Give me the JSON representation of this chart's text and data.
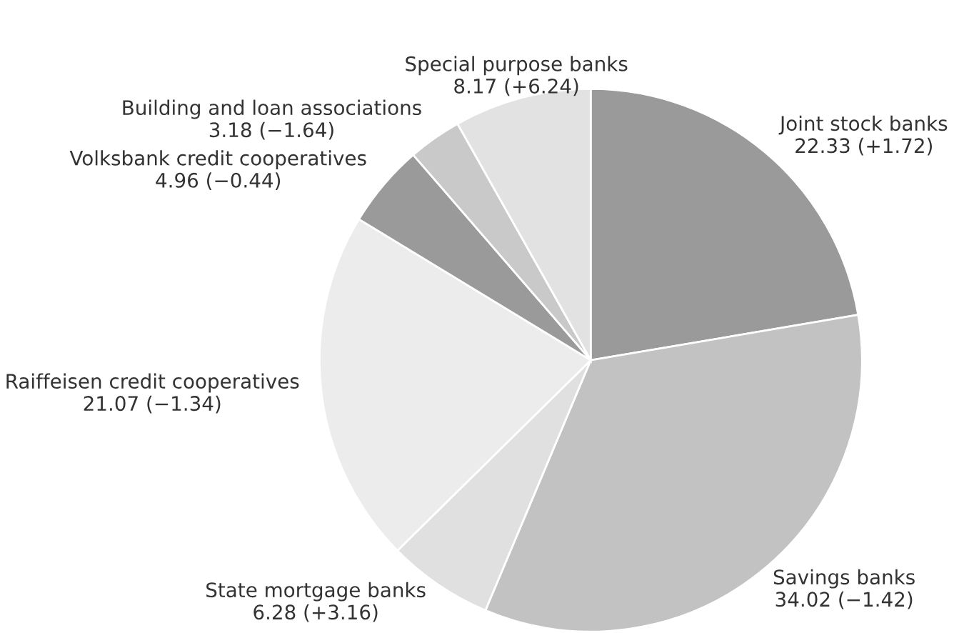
{
  "chart_data": {
    "type": "pie",
    "categories": [
      "Joint stock banks",
      "Savings banks",
      "State mortgage banks",
      "Raiffeisen credit cooperatives",
      "Volksbank credit cooperatives",
      "Building and loan associations",
      "Special purpose banks"
    ],
    "values": [
      22.33,
      34.02,
      6.28,
      21.07,
      4.96,
      3.18,
      8.17
    ],
    "value_labels": [
      "22.33 (+1.72)",
      "34.02 (−1.42)",
      "6.28 (+3.16)",
      "21.07 (−1.34)",
      "4.96 (−0.44)",
      "3.18 (−1.64)",
      "8.17 (+6.24)"
    ],
    "colors": [
      "#9a9a9a",
      "#c2c2c2",
      "#e0e0e0",
      "#ececec",
      "#9a9a9a",
      "#c9c9c9",
      "#e2e2e2"
    ]
  }
}
